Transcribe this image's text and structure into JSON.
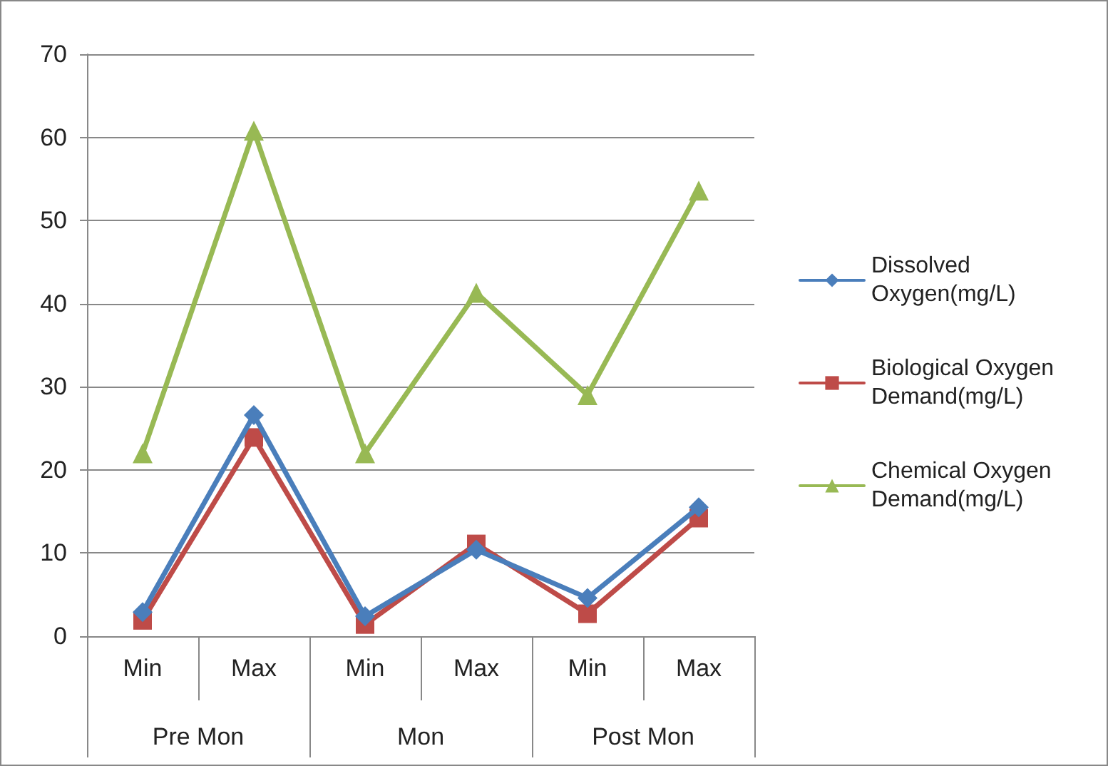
{
  "chart_data": {
    "type": "line",
    "categories": [
      "Min",
      "Max",
      "Min",
      "Max",
      "Min",
      "Max"
    ],
    "annotations": [
      "Pre Mon",
      "Mon",
      "Post Mon"
    ],
    "ylim": [
      0,
      70
    ],
    "yticks": [
      0,
      10,
      20,
      30,
      40,
      50,
      60,
      70
    ],
    "grid": "y",
    "legend": "right",
    "series": [
      {
        "name": "Dissolved Oxygen(mg/L)",
        "color": "#4a7ebb",
        "marker": "diamond",
        "values": [
          2.9,
          26.6,
          2.4,
          10.4,
          4.6,
          15.5
        ]
      },
      {
        "name": "Biological Oxygen Demand(mg/L)",
        "color": "#be4b48",
        "marker": "square",
        "values": [
          1.9,
          23.9,
          1.4,
          11.1,
          2.7,
          14.2
        ]
      },
      {
        "name": "Chemical Oxygen Demand(mg/L)",
        "color": "#98b954",
        "marker": "triangle",
        "values": [
          22,
          60.8,
          22,
          41.3,
          29,
          53.6
        ]
      }
    ]
  }
}
